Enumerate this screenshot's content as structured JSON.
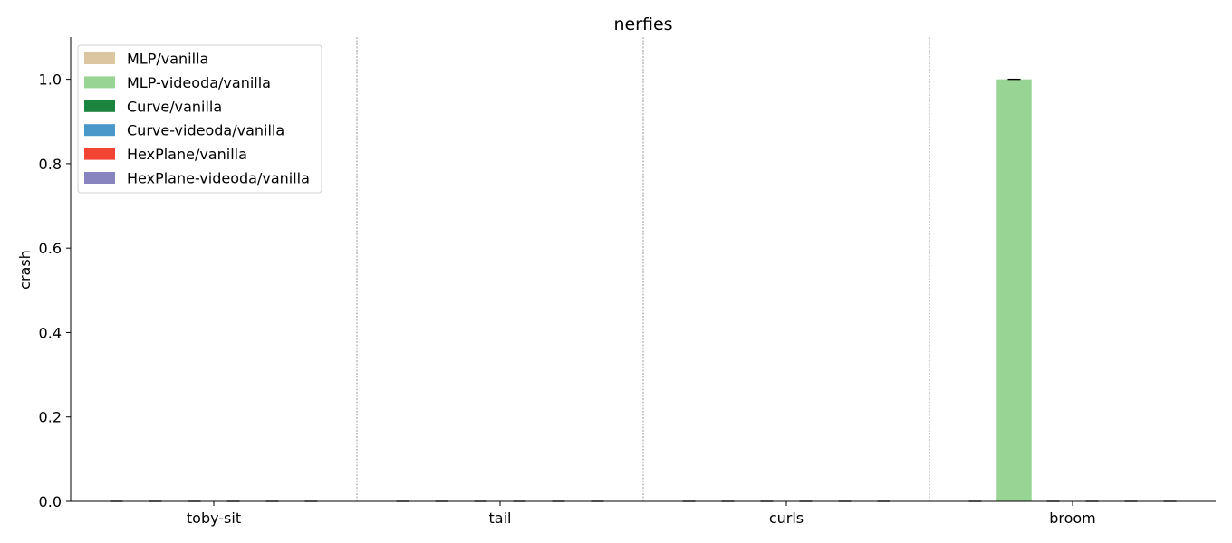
{
  "chart_data": {
    "type": "bar",
    "title": "nerfies",
    "xlabel": "",
    "ylabel": "crash",
    "ylim": [
      0,
      1.1
    ],
    "yticks": [
      "0.0",
      "0.2",
      "0.4",
      "0.6",
      "0.8",
      "1.0"
    ],
    "categories": [
      "toby-sit",
      "tail",
      "curls",
      "broom"
    ],
    "series": [
      {
        "name": "MLP/vanilla",
        "color": "#dbc69f",
        "values": [
          0,
          0,
          0,
          0
        ]
      },
      {
        "name": "MLP-videoda/vanilla",
        "color": "#98d594",
        "values": [
          0,
          0,
          0,
          1.0
        ]
      },
      {
        "name": "Curve/vanilla",
        "color": "#1b843f",
        "values": [
          0,
          0,
          0,
          0
        ]
      },
      {
        "name": "Curve-videoda/vanilla",
        "color": "#4a98c9",
        "values": [
          0,
          0,
          0,
          0
        ]
      },
      {
        "name": "HexPlane/vanilla",
        "color": "#f14432",
        "values": [
          0,
          0,
          0,
          0
        ]
      },
      {
        "name": "HexPlane-videoda/vanilla",
        "color": "#8884c0",
        "values": [
          0,
          0,
          0,
          0
        ]
      }
    ],
    "legend_position": "top-left",
    "grid": false,
    "group_separators": true,
    "error_bars": true
  }
}
